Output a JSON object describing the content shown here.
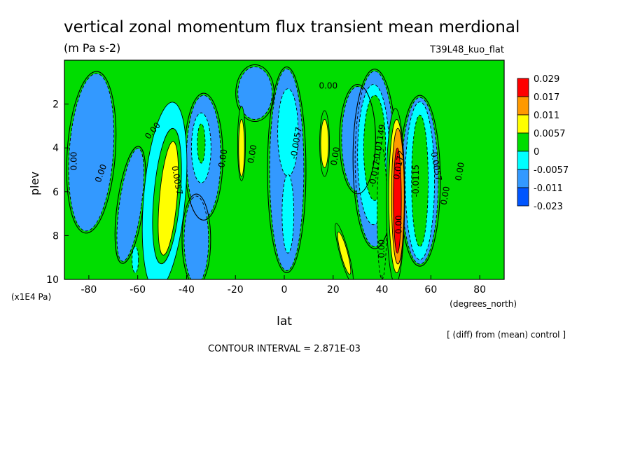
{
  "chart_data": {
    "type": "heatmap",
    "title": "vertical zonal momentum flux transient mean merdional",
    "units": "(m Pa s-2)",
    "experiment": "T39L48_kuo_flat",
    "xlabel": "lat",
    "xunits": "(degrees_north)",
    "ylabel": "plev",
    "yunits": "(x1E4 Pa)",
    "xlim": [
      -90,
      90
    ],
    "ylim": [
      10,
      0
    ],
    "x_ticks": [
      -80,
      -60,
      -40,
      -20,
      0,
      20,
      40,
      60,
      80
    ],
    "x_tick_labels": [
      "-80",
      "-60",
      "-40",
      "-20",
      "0",
      "20",
      "40",
      "60",
      "80"
    ],
    "y_ticks": [
      2,
      4,
      6,
      8,
      10
    ],
    "y_tick_labels": [
      "2",
      "4",
      "6",
      "8",
      "10"
    ],
    "legend": {
      "position": "right",
      "labels": [
        "0.029",
        "0.017",
        "0.011",
        "0.0057",
        "0",
        "-0.0057",
        "-0.011",
        "-0.023"
      ],
      "colors": [
        "#ff0000",
        "#ff9900",
        "#ffff00",
        "#00dd00",
        "#00ffff",
        "#3399ff",
        "#0055ff"
      ]
    },
    "contour_labels": [
      {
        "text": "0.00",
        "x": -85,
        "y": 4.6,
        "rotate": -90
      },
      {
        "text": "0.00",
        "x": -74,
        "y": 5.2,
        "rotate": -70
      },
      {
        "text": "0.00",
        "x": -53,
        "y": 3.3,
        "rotate": -50
      },
      {
        "text": "0.0057",
        "x": -45,
        "y": 5.5,
        "rotate": 80
      },
      {
        "text": "0.00",
        "x": -24,
        "y": 4.5,
        "rotate": -80
      },
      {
        "text": "0.00",
        "x": -12,
        "y": 4.3,
        "rotate": -80
      },
      {
        "text": "0.00",
        "x": 18,
        "y": 1.3,
        "rotate": 0
      },
      {
        "text": "-0.0057",
        "x": 6,
        "y": 3.8,
        "rotate": -80
      },
      {
        "text": "0.00",
        "x": 22,
        "y": 4.4,
        "rotate": -80
      },
      {
        "text": "-0.01149",
        "x": 40,
        "y": 3.8,
        "rotate": -80
      },
      {
        "text": "-0.017",
        "x": 38,
        "y": 5.2,
        "rotate": -80
      },
      {
        "text": "0.00",
        "x": 41,
        "y": 8.6,
        "rotate": -90
      },
      {
        "text": "0.0172",
        "x": 48,
        "y": 4.8,
        "rotate": -80
      },
      {
        "text": "0.00",
        "x": 48,
        "y": 7.5,
        "rotate": -90
      },
      {
        "text": "-0.0115",
        "x": 55,
        "y": 5.5,
        "rotate": -90
      },
      {
        "text": "-0.0057",
        "x": 61,
        "y": 4.8,
        "rotate": 80
      },
      {
        "text": "0.00",
        "x": 67,
        "y": 6.2,
        "rotate": -80
      },
      {
        "text": "0.00",
        "x": 73,
        "y": 5.1,
        "rotate": -80
      }
    ],
    "features": [
      {
        "sign": "neg",
        "level": 2,
        "cx": -79,
        "cy": 4.2,
        "rx": 9,
        "ry": 3.6,
        "rot": 4
      },
      {
        "sign": "neg",
        "level": 2,
        "cx": -63,
        "cy": 6.6,
        "rx": 4.5,
        "ry": 2.6,
        "rot": 8
      },
      {
        "sign": "neg",
        "level": 3,
        "cx": -61,
        "cy": 9.1,
        "rx": 1.3,
        "ry": 0.6,
        "rot": 0
      },
      {
        "sign": "pos",
        "level": 4,
        "cx": -49,
        "cy": 6.2,
        "rx": 8.5,
        "ry": 4.3,
        "rot": 5
      },
      {
        "sign": "pos",
        "level": 5,
        "cx": -48,
        "cy": 6.2,
        "rx": 5.4,
        "ry": 3.1,
        "rot": 5
      },
      {
        "sign": "pos",
        "level": 6,
        "cx": -47.5,
        "cy": 6.3,
        "rx": 3.6,
        "ry": 2.6,
        "rot": 5
      },
      {
        "sign": "neg",
        "level": 2,
        "cx": -33,
        "cy": 4.4,
        "rx": 7,
        "ry": 2.8,
        "rot": 0
      },
      {
        "sign": "neg",
        "level": 2,
        "cx": -36,
        "cy": 8.2,
        "rx": 5,
        "ry": 2.0,
        "rot": 0
      },
      {
        "sign": "neg",
        "level": 3,
        "cx": -34,
        "cy": 4.0,
        "rx": 4,
        "ry": 1.6,
        "rot": 0
      },
      {
        "sign": "neg",
        "level": 4,
        "cx": -34,
        "cy": 3.8,
        "rx": 1.6,
        "ry": 0.9,
        "rot": 0
      },
      {
        "sign": "neg",
        "level": 2,
        "cx": -12,
        "cy": 1.5,
        "rx": 7,
        "ry": 1.2,
        "rot": 0
      },
      {
        "sign": "pos",
        "level": 5,
        "cx": -17.5,
        "cy": 3.8,
        "rx": 1.6,
        "ry": 1.7,
        "rot": 0
      },
      {
        "sign": "pos",
        "level": 6,
        "cx": -17.5,
        "cy": 4.0,
        "rx": 1.2,
        "ry": 1.3,
        "rot": 0
      },
      {
        "sign": "neg",
        "level": 2,
        "cx": 1,
        "cy": 5.0,
        "rx": 7,
        "ry": 4.6,
        "rot": 0
      },
      {
        "sign": "neg",
        "level": 3,
        "cx": 1.5,
        "cy": 3.3,
        "rx": 4.2,
        "ry": 2.0,
        "rot": 0
      },
      {
        "sign": "neg",
        "level": 3,
        "cx": 1.5,
        "cy": 7.0,
        "rx": 2.4,
        "ry": 1.8,
        "rot": 0
      },
      {
        "sign": "pos",
        "level": 5,
        "cx": 16.5,
        "cy": 3.8,
        "rx": 2.0,
        "ry": 1.5,
        "rot": 0
      },
      {
        "sign": "pos",
        "level": 6,
        "cx": 16.5,
        "cy": 3.8,
        "rx": 1.6,
        "ry": 1.1,
        "rot": 0
      },
      {
        "sign": "neg",
        "level": 2,
        "cx": 30,
        "cy": 3.6,
        "rx": 6.5,
        "ry": 2.4,
        "rot": 0
      },
      {
        "sign": "pos",
        "level": 5,
        "cx": 24.5,
        "cy": 8.8,
        "rx": 1.8,
        "ry": 1.4,
        "rot": -15
      },
      {
        "sign": "pos",
        "level": 6,
        "cx": 24.5,
        "cy": 8.8,
        "rx": 1.4,
        "ry": 1.0,
        "rot": -15
      },
      {
        "sign": "neg",
        "level": 2,
        "cx": 37,
        "cy": 4.5,
        "rx": 8,
        "ry": 4.0,
        "rot": 0
      },
      {
        "sign": "neg",
        "level": 3,
        "cx": 36.5,
        "cy": 4.3,
        "rx": 6.5,
        "ry": 3.2,
        "rot": 0
      },
      {
        "sign": "neg",
        "level": 4,
        "cx": 37,
        "cy": 4.0,
        "rx": 4.5,
        "ry": 2.4,
        "rot": 0
      },
      {
        "sign": "neg",
        "level": 4,
        "cx": 40,
        "cy": 7.0,
        "rx": 2.0,
        "ry": 3.0,
        "rot": 0
      },
      {
        "sign": "pos",
        "level": 5,
        "cx": 45.5,
        "cy": 6.2,
        "rx": 3.8,
        "ry": 4.0,
        "rot": 0
      },
      {
        "sign": "pos",
        "level": 6,
        "cx": 46,
        "cy": 6.2,
        "rx": 3.2,
        "ry": 3.5,
        "rot": 0
      },
      {
        "sign": "pos",
        "level": 7,
        "cx": 46.5,
        "cy": 6.2,
        "rx": 2.6,
        "ry": 3.1,
        "rot": 0
      },
      {
        "sign": "pos",
        "level": 8,
        "cx": 46.3,
        "cy": 6.4,
        "rx": 1.6,
        "ry": 2.4,
        "rot": 0
      },
      {
        "sign": "neg",
        "level": 2,
        "cx": 55.5,
        "cy": 5.5,
        "rx": 7.5,
        "ry": 3.8,
        "rot": 0
      },
      {
        "sign": "neg",
        "level": 3,
        "cx": 55.5,
        "cy": 5.5,
        "rx": 6.0,
        "ry": 3.6,
        "rot": 0
      },
      {
        "sign": "neg",
        "level": 4,
        "cx": 55.5,
        "cy": 5.5,
        "rx": 3.4,
        "ry": 3.0,
        "rot": 0
      }
    ]
  },
  "footer": {
    "contour_interval": "CONTOUR INTERVAL = 2.871E-03",
    "note": "[ (diff) from (mean) control ]"
  }
}
